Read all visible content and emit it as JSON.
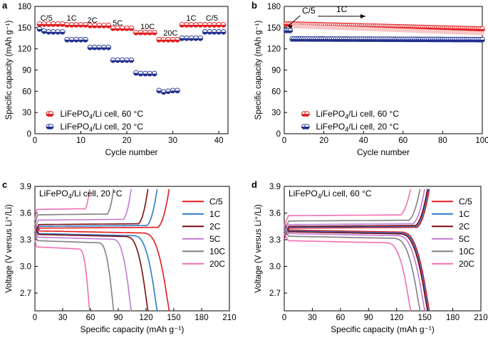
{
  "figure": {
    "colors": {
      "red": "#e31a1c",
      "blue": "#1f2f8f",
      "c5": "#e41a1c",
      "c1": "#2b7bc8",
      "c2": "#7a0c12",
      "c5c": "#c07ad6",
      "c10": "#808080",
      "c20": "#f06fb4"
    }
  },
  "chart_data": [
    {
      "panel": "a",
      "type": "scatter",
      "xlabel": "Cycle number",
      "ylabel": "Specific capacity (mAh g⁻¹)",
      "xlim": [
        0,
        42
      ],
      "ylim": [
        0,
        180
      ],
      "xticks": [
        "0",
        "10",
        "20",
        "30",
        "40"
      ],
      "yticks": [
        "0",
        "30",
        "60",
        "90",
        "120",
        "150",
        "180"
      ],
      "rate_labels": [
        "C/5",
        "1C",
        "2C",
        "5C",
        "10C",
        "20C",
        "1C",
        "C/5"
      ],
      "series": [
        {
          "name": "LiFePO4/Li cell, 60 °C",
          "legend_main": "LiFePO",
          "legend_sub": "4",
          "legend_rest": "/Li cell, 60 °C",
          "color": "red",
          "x": [
            1,
            2,
            3,
            4,
            5,
            6,
            7,
            8,
            9,
            10,
            11,
            12,
            13,
            14,
            15,
            16,
            17,
            18,
            19,
            20,
            21,
            22,
            23,
            24,
            25,
            26,
            27,
            28,
            29,
            30,
            31,
            32,
            33,
            34,
            35,
            36,
            37,
            38,
            39,
            40,
            41
          ],
          "y": [
            155,
            155,
            155,
            155,
            155,
            155,
            154,
            154,
            154,
            154,
            154,
            153,
            153,
            153,
            153,
            153,
            149,
            149,
            149,
            149,
            149,
            143,
            143,
            143,
            143,
            143,
            133,
            133,
            133,
            133,
            133,
            154,
            154,
            154,
            154,
            154,
            154,
            154,
            154,
            154,
            154
          ]
        },
        {
          "name": "LiFePO4/Li cell, 20 °C",
          "legend_main": "LiFePO",
          "legend_sub": "4",
          "legend_rest": "/Li cell, 20 °C",
          "color": "blue",
          "x": [
            1,
            2,
            3,
            4,
            5,
            6,
            7,
            8,
            9,
            10,
            11,
            12,
            13,
            14,
            15,
            16,
            17,
            18,
            19,
            20,
            21,
            22,
            23,
            24,
            25,
            26,
            27,
            28,
            29,
            30,
            31,
            32,
            33,
            34,
            35,
            36,
            37,
            38,
            39,
            40,
            41
          ],
          "y": [
            148,
            145,
            144,
            144,
            144,
            144,
            133,
            133,
            133,
            133,
            133,
            122,
            122,
            122,
            122,
            122,
            104,
            104,
            104,
            104,
            104,
            86,
            85,
            85,
            85,
            85,
            61,
            59,
            60,
            61,
            61,
            135,
            135,
            135,
            135,
            135,
            144,
            144,
            144,
            144,
            144
          ]
        }
      ]
    },
    {
      "panel": "b",
      "type": "scatter",
      "xlabel": "Cycle number",
      "ylabel": "Specific capacity (mAh g⁻¹)",
      "xlim": [
        0,
        100
      ],
      "ylim": [
        0,
        180
      ],
      "xticks": [
        "0",
        "20",
        "40",
        "60",
        "80",
        "100"
      ],
      "yticks": [
        "0",
        "30",
        "60",
        "90",
        "120",
        "150",
        "180"
      ],
      "rate_labels": [
        "C/5",
        "1C"
      ],
      "series": [
        {
          "name": "LiFePO4/Li cell, 60 °C",
          "legend_main": "LiFePO",
          "legend_sub": "4",
          "legend_rest": "/Li cell, 60 °C",
          "color": "red",
          "x_start": 1,
          "x_end": 100,
          "y_start": 155,
          "y_end": 148,
          "first3": [
            155,
            155,
            155
          ]
        },
        {
          "name": "LiFePO4/Li cell, 20 °C",
          "legend_main": "LiFePO",
          "legend_sub": "4",
          "legend_rest": "/Li cell, 20 °C",
          "color": "blue",
          "x_start": 1,
          "x_end": 100,
          "y_start": 134,
          "y_end": 133,
          "first3": [
            146,
            146,
            146
          ]
        }
      ]
    },
    {
      "panel": "c",
      "type": "line",
      "title": "LiFePO4/Li cell, 20 °C",
      "title_main": "LiFePO",
      "title_sub": "4",
      "title_rest": "/Li cell, 20 °C",
      "xlabel": "Specific capacity (mAh g⁻¹)",
      "ylabel": "Voltage (V versus Li⁺/Li)",
      "xlim": [
        0,
        210
      ],
      "ylim": [
        2.5,
        3.9
      ],
      "xticks": [
        "0",
        "30",
        "60",
        "90",
        "120",
        "150",
        "180",
        "210"
      ],
      "yticks": [
        "2.7",
        "3.0",
        "3.3",
        "3.6",
        "3.9"
      ],
      "series": [
        {
          "name": "C/5",
          "color": "c5",
          "capacity": 145,
          "charge_v": 3.43,
          "discharge_v": 3.4
        },
        {
          "name": "1C",
          "color": "c1",
          "capacity": 132,
          "charge_v": 3.45,
          "discharge_v": 3.37
        },
        {
          "name": "2C",
          "color": "c2",
          "capacity": 122,
          "charge_v": 3.47,
          "discharge_v": 3.36
        },
        {
          "name": "5C",
          "color": "c5c",
          "capacity": 104,
          "charge_v": 3.52,
          "discharge_v": 3.33
        },
        {
          "name": "10C",
          "color": "c10",
          "capacity": 85,
          "charge_v": 3.58,
          "discharge_v": 3.29
        },
        {
          "name": "20C",
          "color": "c20",
          "capacity": 59,
          "charge_v": 3.64,
          "discharge_v": 3.22
        }
      ]
    },
    {
      "panel": "d",
      "type": "line",
      "title": "LiFePO4/Li cell, 60 °C",
      "title_main": "LiFePO",
      "title_sub": "4",
      "title_rest": "/Li cell, 60 °C",
      "xlabel": "Specific capacity (mAh g⁻¹)",
      "ylabel": "Voltage (V versus Li⁺/Li)",
      "xlim": [
        0,
        210
      ],
      "ylim": [
        2.5,
        3.9
      ],
      "xticks": [
        "0",
        "30",
        "60",
        "90",
        "120",
        "150",
        "180",
        "210"
      ],
      "yticks": [
        "2.7",
        "3.0",
        "3.3",
        "3.6",
        "3.9"
      ],
      "series": [
        {
          "name": "C/5",
          "color": "c5",
          "capacity": 155,
          "charge_v": 3.43,
          "discharge_v": 3.41
        },
        {
          "name": "1C",
          "color": "c1",
          "capacity": 154,
          "charge_v": 3.44,
          "discharge_v": 3.4
        },
        {
          "name": "2C",
          "color": "c2",
          "capacity": 153,
          "charge_v": 3.45,
          "discharge_v": 3.39
        },
        {
          "name": "5C",
          "color": "c5c",
          "capacity": 150,
          "charge_v": 3.47,
          "discharge_v": 3.37
        },
        {
          "name": "10C",
          "color": "c10",
          "capacity": 145,
          "charge_v": 3.51,
          "discharge_v": 3.34
        },
        {
          "name": "20C",
          "color": "c20",
          "capacity": 135,
          "charge_v": 3.57,
          "discharge_v": 3.29
        }
      ]
    }
  ],
  "panel_letters": [
    "a",
    "b",
    "c",
    "d"
  ]
}
